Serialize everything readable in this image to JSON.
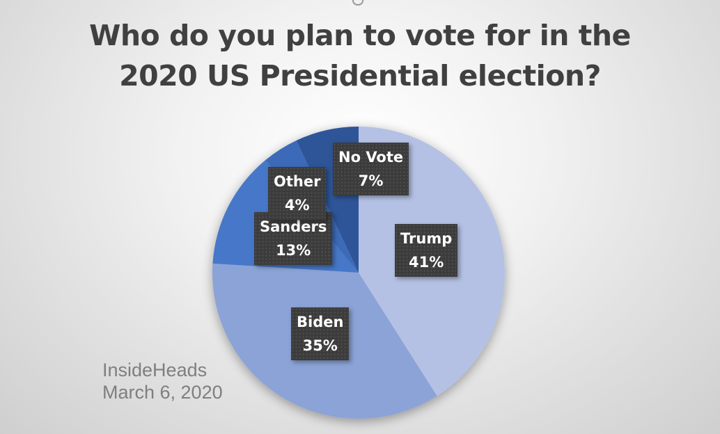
{
  "chart_data": {
    "type": "pie",
    "title": "Who do you plan to vote for in the 2020 US Presidential election?",
    "title_lines": [
      "Who do you plan to vote for in the",
      "2020 US Presidential election?"
    ],
    "categories": [
      "Trump",
      "Biden",
      "Sanders",
      "Other",
      "No Vote"
    ],
    "values": [
      41,
      35,
      13,
      4,
      7
    ],
    "unit": "%",
    "colors": [
      "#b4c1e4",
      "#8ba3d6",
      "#4677c8",
      "#3d6bb8",
      "#2f5597"
    ],
    "labels": [
      {
        "name": "Trump",
        "pct": "41%"
      },
      {
        "name": "Biden",
        "pct": "35%"
      },
      {
        "name": "Sanders",
        "pct": "13%"
      },
      {
        "name": "Other",
        "pct": "4%"
      },
      {
        "name": "No Vote",
        "pct": "7%"
      }
    ],
    "start_angle": "12 o'clock, clockwise",
    "legend": "none (data labels)"
  },
  "source": {
    "org": "InsideHeads",
    "date": "March 6, 2020"
  }
}
